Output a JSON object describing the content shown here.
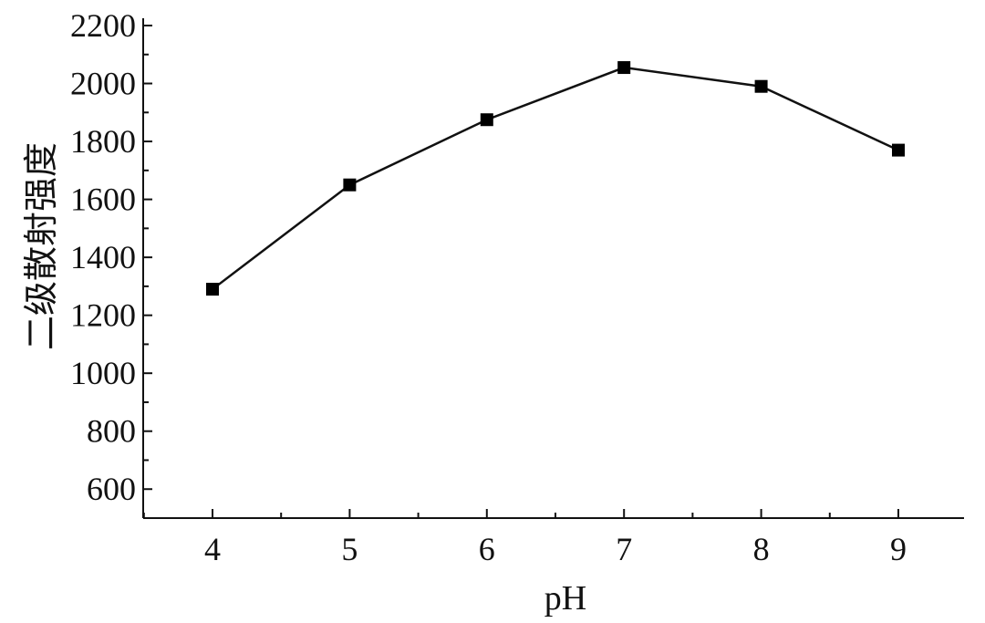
{
  "chart_data": {
    "type": "line",
    "title": "",
    "xlabel": "pH",
    "ylabel": "二级散射强度",
    "x": [
      4,
      5,
      6,
      7,
      8,
      9
    ],
    "series": [
      {
        "values": [
          1290,
          1650,
          1875,
          2055,
          1990,
          1770
        ],
        "marker": "square",
        "color": "#000000"
      }
    ],
    "xlim": [
      3.5,
      9.5
    ],
    "ylim": [
      500,
      2200
    ],
    "xticks": [
      4,
      5,
      6,
      7,
      8,
      9
    ],
    "yticks": [
      600,
      800,
      1000,
      1200,
      1400,
      1600,
      1800,
      2000,
      2200
    ],
    "grid": false,
    "legend": "none"
  }
}
